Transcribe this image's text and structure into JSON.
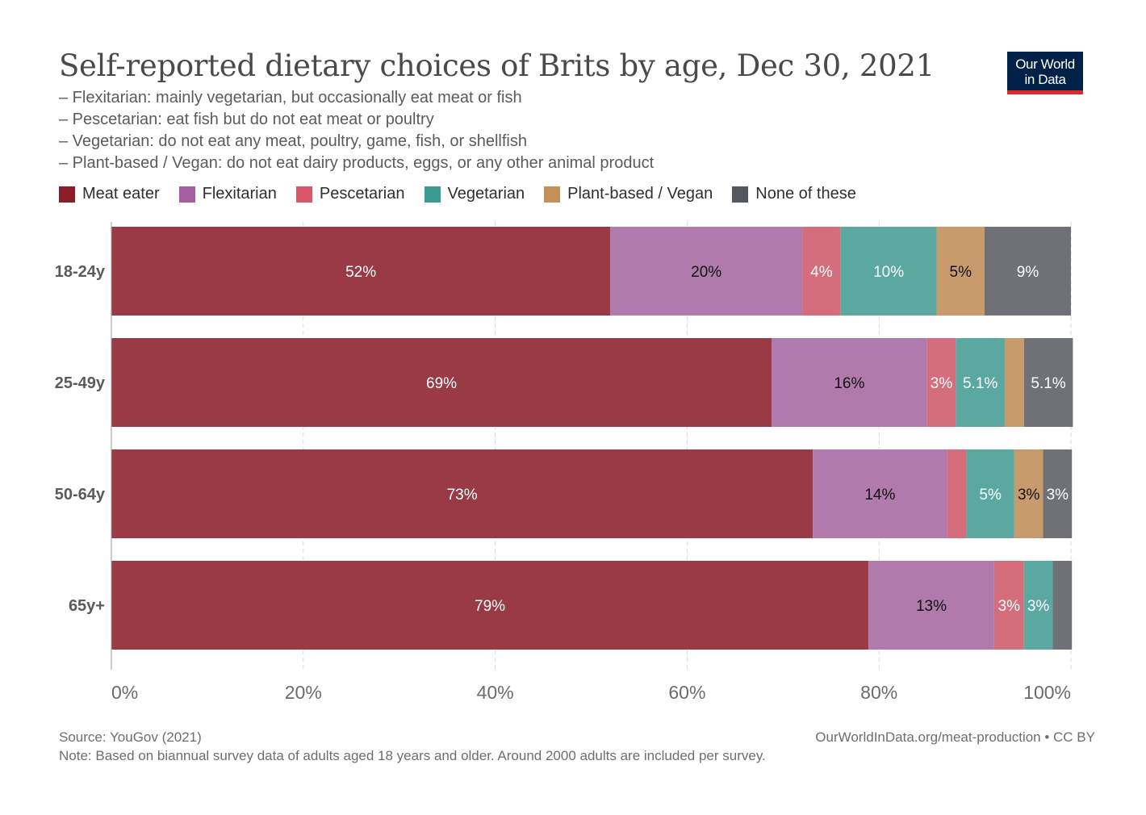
{
  "chart_data": {
    "type": "bar",
    "orientation": "horizontal",
    "stacked": true,
    "title": "Self-reported dietary choices of Brits by age, Dec 30, 2021",
    "subtitle_lines": [
      "– Flexitarian: mainly vegetarian, but occasionally eat meat or fish",
      "– Pescetarian: eat fish but do not eat meat or poultry",
      "– Vegetarian: do not eat any meat, poultry, game, fish, or shellfish",
      "– Plant-based / Vegan: do not eat dairy products, eggs, or any other animal product"
    ],
    "categories": [
      "18-24y",
      "25-49y",
      "50-64y",
      "65y+"
    ],
    "series": [
      {
        "name": "Meat eater",
        "color": "#9a3a44",
        "legend_color": "#8c1c28",
        "label_color": "#ffffff",
        "values": [
          52,
          68.8,
          73.1,
          78.9
        ],
        "labels": [
          "52%",
          "69%",
          "73%",
          "79%"
        ]
      },
      {
        "name": "Flexitarian",
        "color": "#b07aad",
        "legend_color": "#a55fa0",
        "label_color": "#111111",
        "values": [
          20,
          16.2,
          14,
          13.1
        ],
        "labels": [
          "20%",
          "16%",
          "14%",
          "13%"
        ]
      },
      {
        "name": "Pescetarian",
        "color": "#d46e7c",
        "legend_color": "#d9576a",
        "label_color": "#ffffff",
        "values": [
          4,
          3,
          2,
          3.1
        ],
        "labels": [
          "4%",
          "3%",
          "",
          "3%"
        ]
      },
      {
        "name": "Vegetarian",
        "color": "#5ba8a0",
        "legend_color": "#3a9b92",
        "label_color": "#ffffff",
        "values": [
          10,
          5.1,
          5,
          3
        ],
        "labels": [
          "10%",
          "5.1%",
          "5%",
          "3%"
        ]
      },
      {
        "name": "Plant-based / Vegan",
        "color": "#c79b6c",
        "legend_color": "#c69159",
        "label_color": "#111111",
        "values": [
          5,
          2,
          3,
          0
        ],
        "labels": [
          "5%",
          "",
          "3%",
          ""
        ]
      },
      {
        "name": "None of these",
        "color": "#707177",
        "legend_color": "#54575e",
        "label_color": "#ffffff",
        "values": [
          9,
          5.1,
          3,
          2
        ],
        "labels": [
          "9%",
          "5.1%",
          "3%",
          ""
        ]
      }
    ],
    "xlim": [
      0,
      100
    ],
    "x_ticks": [
      0,
      20,
      40,
      60,
      80,
      100
    ],
    "x_tick_labels": [
      "0%",
      "20%",
      "40%",
      "60%",
      "80%",
      "100%"
    ],
    "grid": true
  },
  "logo": {
    "line1": "Our World",
    "line2": "in Data"
  },
  "footer": {
    "source": "Source: YouGov (2021)",
    "attribution": "OurWorldInData.org/meat-production • CC BY",
    "note": "Note: Based on biannual survey data of adults aged 18 years and older. Around 2000 adults are included per survey."
  }
}
